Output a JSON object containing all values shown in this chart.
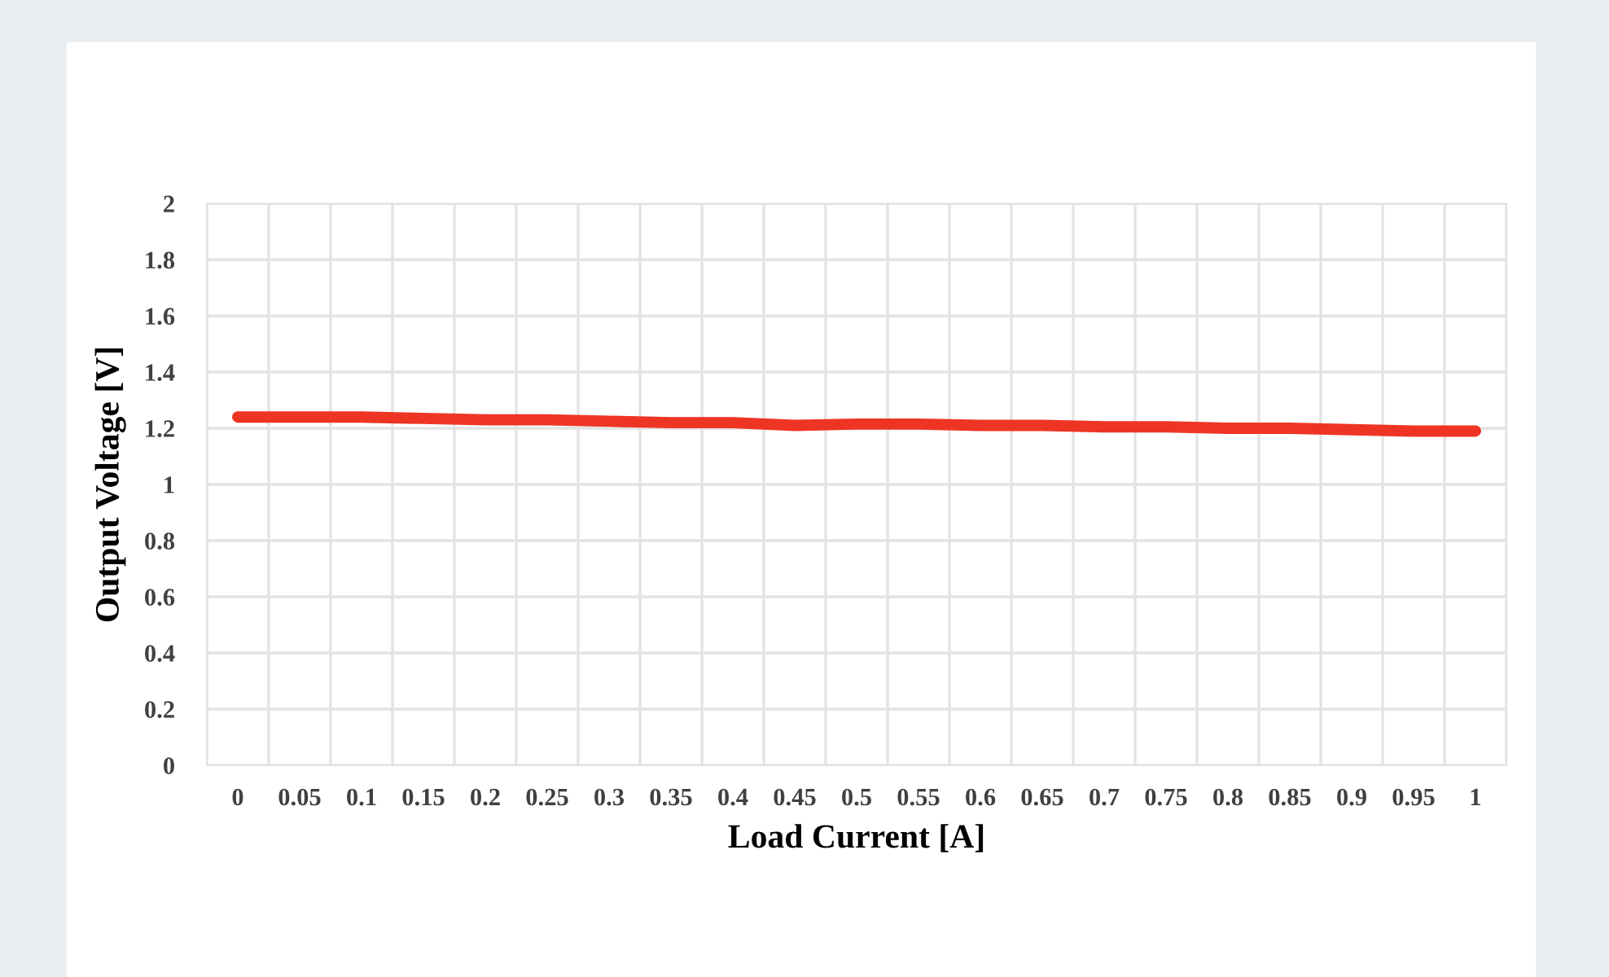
{
  "chart_data": {
    "type": "line",
    "xlabel": "Load Current [A]",
    "ylabel": "Output Voltage [V]",
    "categories": [
      "0",
      "0.05",
      "0.1",
      "0.15",
      "0.2",
      "0.25",
      "0.3",
      "0.35",
      "0.4",
      "0.45",
      "0.5",
      "0.55",
      "0.6",
      "0.65",
      "0.7",
      "0.75",
      "0.8",
      "0.85",
      "0.9",
      "0.95",
      "1"
    ],
    "series": [
      {
        "color": "#ee3524",
        "values": [
          1.24,
          1.24,
          1.24,
          1.235,
          1.23,
          1.23,
          1.225,
          1.22,
          1.22,
          1.21,
          1.215,
          1.215,
          1.21,
          1.21,
          1.205,
          1.205,
          1.2,
          1.2,
          1.195,
          1.19,
          1.19
        ]
      }
    ],
    "ylim": [
      0,
      2
    ],
    "yticks": [
      0,
      0.2,
      0.4,
      0.6,
      0.8,
      1,
      1.2,
      1.4,
      1.6,
      1.8,
      2
    ],
    "grid": true,
    "marker": "none",
    "line_style": "solid"
  }
}
